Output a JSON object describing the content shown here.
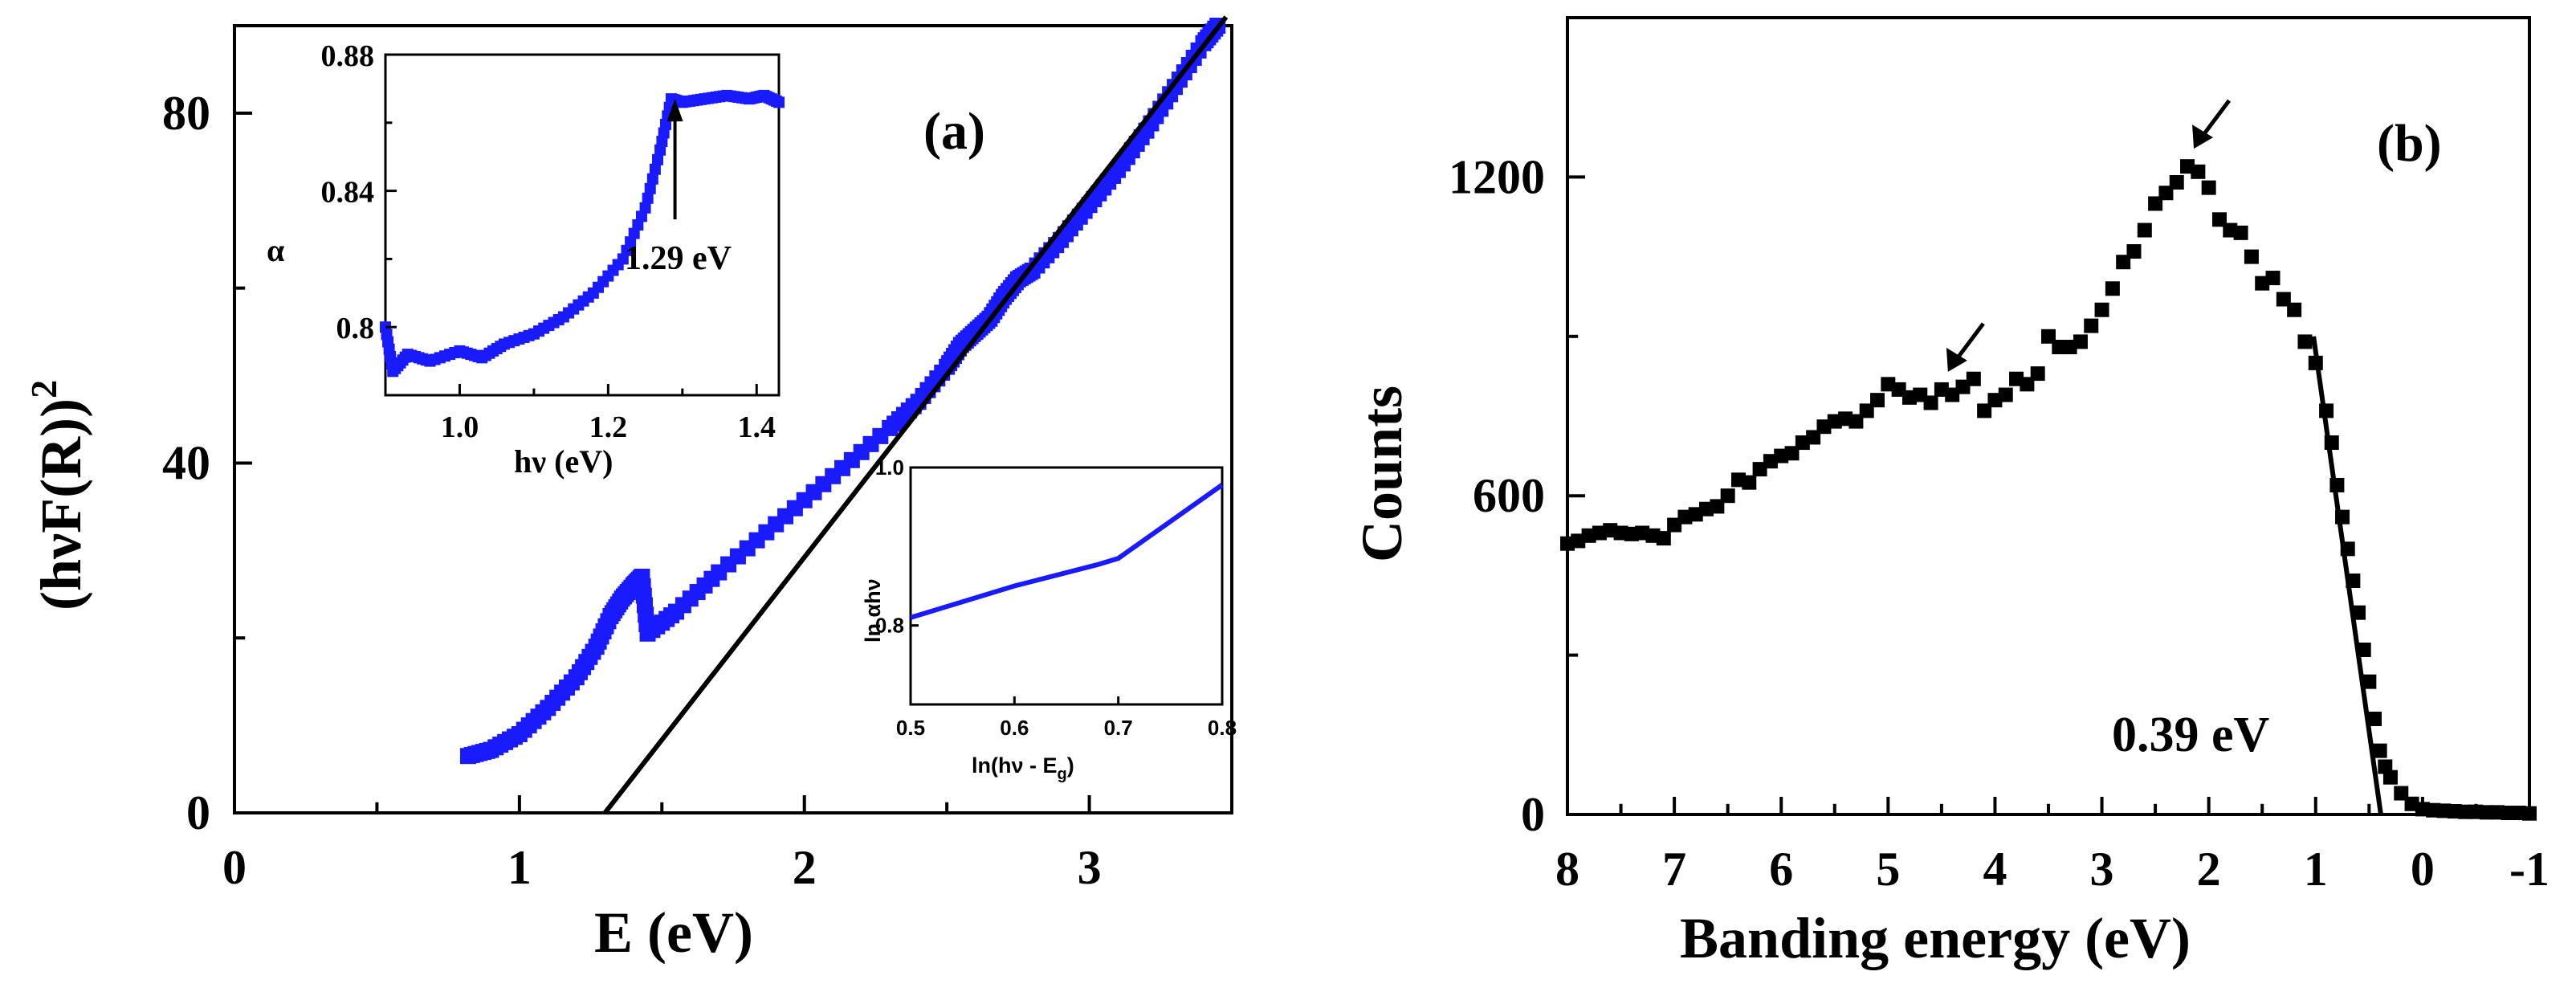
{
  "colors": {
    "series_blue": "#1a1aff",
    "series_black": "#000000",
    "fit_line": "#000000",
    "background": "#ffffff"
  },
  "chart_data": [
    {
      "id": "panel-a",
      "type": "scatter",
      "panel_label": "(a)",
      "xlabel": "E (eV)",
      "ylabel": "(hνF(R))",
      "ylabel_superscript": "2",
      "xlim": [
        0,
        3.5
      ],
      "ylim": [
        0,
        90
      ],
      "xticks": [
        0,
        1,
        2,
        3
      ],
      "xtick_labels": [
        "0",
        "1",
        "2",
        "3"
      ],
      "yticks": [
        0,
        40,
        80
      ],
      "ytick_labels": [
        "0",
        "40",
        "80"
      ],
      "series": [
        {
          "name": "(hνF(R))^2",
          "color": "#1a1aff",
          "points": [
            [
              0.82,
              6.5
            ],
            [
              0.9,
              7.2
            ],
            [
              1.0,
              9
            ],
            [
              1.1,
              12
            ],
            [
              1.2,
              15.5
            ],
            [
              1.27,
              19
            ],
            [
              1.32,
              22.5
            ],
            [
              1.36,
              24.5
            ],
            [
              1.4,
              26
            ],
            [
              1.43,
              27
            ],
            [
              1.45,
              20.5
            ],
            [
              1.55,
              23
            ],
            [
              1.7,
              27.5
            ],
            [
              1.9,
              33
            ],
            [
              2.1,
              38.5
            ],
            [
              2.3,
              44
            ],
            [
              2.4,
              47
            ],
            [
              2.5,
              51
            ],
            [
              2.55,
              53.5
            ],
            [
              2.6,
              55
            ],
            [
              2.65,
              56.5
            ],
            [
              2.7,
              59
            ],
            [
              2.75,
              61
            ],
            [
              2.8,
              62
            ],
            [
              2.9,
              65.5
            ],
            [
              3.0,
              69.5
            ],
            [
              3.1,
              73.5
            ],
            [
              3.2,
              78
            ],
            [
              3.3,
              83
            ],
            [
              3.4,
              88
            ],
            [
              3.45,
              90
            ]
          ]
        }
      ],
      "fit_line": {
        "x": [
          1.3,
          3.48
        ],
        "y": [
          0,
          91
        ]
      }
    },
    {
      "id": "panel-a-inset-top",
      "type": "scatter",
      "xlabel": "hν (eV)",
      "ylabel": "α",
      "xlim": [
        0.9,
        1.43
      ],
      "ylim": [
        0.78,
        0.88
      ],
      "xticks": [
        1.0,
        1.2,
        1.4
      ],
      "xtick_labels": [
        "1.0",
        "1.2",
        "1.4"
      ],
      "yticks": [
        0.8,
        0.84,
        0.88
      ],
      "ytick_labels": [
        "0.8",
        "0.84",
        "0.88"
      ],
      "annotation": "1.29 eV",
      "annotation_point": [
        1.29,
        0.867
      ],
      "series": [
        {
          "name": "α",
          "color": "#1a1aff",
          "points": [
            [
              0.9,
              0.8
            ],
            [
              0.91,
              0.787
            ],
            [
              0.93,
              0.792
            ],
            [
              0.96,
              0.79
            ],
            [
              1.0,
              0.793
            ],
            [
              1.03,
              0.791
            ],
            [
              1.06,
              0.795
            ],
            [
              1.1,
              0.798
            ],
            [
              1.14,
              0.803
            ],
            [
              1.18,
              0.81
            ],
            [
              1.22,
              0.82
            ],
            [
              1.25,
              0.835
            ],
            [
              1.27,
              0.852
            ],
            [
              1.285,
              0.867
            ],
            [
              1.3,
              0.866
            ],
            [
              1.33,
              0.867
            ],
            [
              1.36,
              0.868
            ],
            [
              1.39,
              0.867
            ],
            [
              1.41,
              0.868
            ],
            [
              1.43,
              0.866
            ]
          ]
        }
      ]
    },
    {
      "id": "panel-a-inset-bottom",
      "type": "line",
      "xlabel": "ln(hν - E",
      "xlabel_subscript": "g",
      "xlabel_close": ")",
      "ylabel": "ln αhν",
      "xlim": [
        0.5,
        0.8
      ],
      "ylim": [
        0.7,
        1.0
      ],
      "xticks": [
        0.5,
        0.6,
        0.7,
        0.8
      ],
      "xtick_labels": [
        "0.5",
        "0.6",
        "0.7",
        "0.8"
      ],
      "yticks": [
        0.8,
        1.0
      ],
      "ytick_labels": [
        "0.8",
        "1.0"
      ],
      "series": [
        {
          "name": "ln αhν",
          "color": "#1a1aff",
          "points": [
            [
              0.5,
              0.81
            ],
            [
              0.6,
              0.85
            ],
            [
              0.68,
              0.877
            ],
            [
              0.7,
              0.885
            ],
            [
              0.8,
              0.978
            ]
          ]
        }
      ]
    },
    {
      "id": "panel-b",
      "type": "scatter",
      "panel_label": "(b)",
      "xlabel": "Banding energy (eV)",
      "ylabel": "Counts",
      "xlim": [
        8,
        -1
      ],
      "ylim": [
        0,
        1500
      ],
      "xticks": [
        8,
        7,
        6,
        5,
        4,
        3,
        2,
        1,
        0,
        -1
      ],
      "xtick_labels": [
        "8",
        "7",
        "6",
        "5",
        "4",
        "3",
        "2",
        "1",
        "0",
        "-1"
      ],
      "yticks": [
        0,
        600,
        1200
      ],
      "ytick_labels": [
        "0",
        "600",
        "1200"
      ],
      "annotation": "0.39 eV",
      "fit_line": {
        "x": [
          1.02,
          0.39
        ],
        "y": [
          900,
          0
        ]
      },
      "arrows_at": [
        [
          4.5,
          800
        ],
        [
          2.2,
          1220
        ]
      ],
      "series": [
        {
          "name": "Counts",
          "color": "#000000",
          "points": [
            [
              8.0,
              510
            ],
            [
              7.9,
              515
            ],
            [
              7.8,
              525
            ],
            [
              7.7,
              530
            ],
            [
              7.6,
              535
            ],
            [
              7.5,
              530
            ],
            [
              7.4,
              528
            ],
            [
              7.3,
              530
            ],
            [
              7.2,
              525
            ],
            [
              7.1,
              520
            ],
            [
              7.0,
              545
            ],
            [
              6.9,
              560
            ],
            [
              6.8,
              565
            ],
            [
              6.7,
              575
            ],
            [
              6.6,
              580
            ],
            [
              6.5,
              600
            ],
            [
              6.4,
              630
            ],
            [
              6.3,
              625
            ],
            [
              6.2,
              650
            ],
            [
              6.1,
              665
            ],
            [
              6.0,
              675
            ],
            [
              5.9,
              680
            ],
            [
              5.8,
              700
            ],
            [
              5.7,
              710
            ],
            [
              5.6,
              730
            ],
            [
              5.5,
              740
            ],
            [
              5.4,
              745
            ],
            [
              5.3,
              740
            ],
            [
              5.2,
              760
            ],
            [
              5.1,
              780
            ],
            [
              5.0,
              810
            ],
            [
              4.9,
              800
            ],
            [
              4.8,
              785
            ],
            [
              4.7,
              790
            ],
            [
              4.6,
              775
            ],
            [
              4.5,
              800
            ],
            [
              4.4,
              790
            ],
            [
              4.3,
              805
            ],
            [
              4.2,
              820
            ],
            [
              4.1,
              760
            ],
            [
              4.0,
              780
            ],
            [
              3.9,
              790
            ],
            [
              3.8,
              820
            ],
            [
              3.7,
              810
            ],
            [
              3.6,
              830
            ],
            [
              3.5,
              900
            ],
            [
              3.4,
              880
            ],
            [
              3.3,
              880
            ],
            [
              3.2,
              890
            ],
            [
              3.1,
              920
            ],
            [
              3.0,
              950
            ],
            [
              2.9,
              990
            ],
            [
              2.8,
              1040
            ],
            [
              2.7,
              1060
            ],
            [
              2.6,
              1100
            ],
            [
              2.5,
              1150
            ],
            [
              2.4,
              1170
            ],
            [
              2.3,
              1190
            ],
            [
              2.2,
              1220
            ],
            [
              2.1,
              1210
            ],
            [
              2.0,
              1180
            ],
            [
              1.9,
              1120
            ],
            [
              1.8,
              1100
            ],
            [
              1.7,
              1095
            ],
            [
              1.6,
              1050
            ],
            [
              1.5,
              1000
            ],
            [
              1.4,
              1010
            ],
            [
              1.3,
              970
            ],
            [
              1.2,
              950
            ],
            [
              1.1,
              890
            ],
            [
              1.0,
              850
            ],
            [
              0.9,
              760
            ],
            [
              0.85,
              700
            ],
            [
              0.8,
              620
            ],
            [
              0.75,
              560
            ],
            [
              0.7,
              500
            ],
            [
              0.65,
              440
            ],
            [
              0.6,
              380
            ],
            [
              0.55,
              310
            ],
            [
              0.5,
              250
            ],
            [
              0.45,
              180
            ],
            [
              0.4,
              120
            ],
            [
              0.35,
              90
            ],
            [
              0.3,
              70
            ],
            [
              0.2,
              40
            ],
            [
              0.1,
              20
            ],
            [
              0.0,
              10
            ],
            [
              -0.1,
              8
            ],
            [
              -0.2,
              7
            ],
            [
              -0.3,
              6
            ],
            [
              -0.4,
              5
            ],
            [
              -0.5,
              5
            ],
            [
              -0.6,
              4
            ],
            [
              -0.7,
              4
            ],
            [
              -0.8,
              3
            ],
            [
              -0.9,
              3
            ],
            [
              -1.0,
              2
            ]
          ]
        }
      ]
    }
  ]
}
